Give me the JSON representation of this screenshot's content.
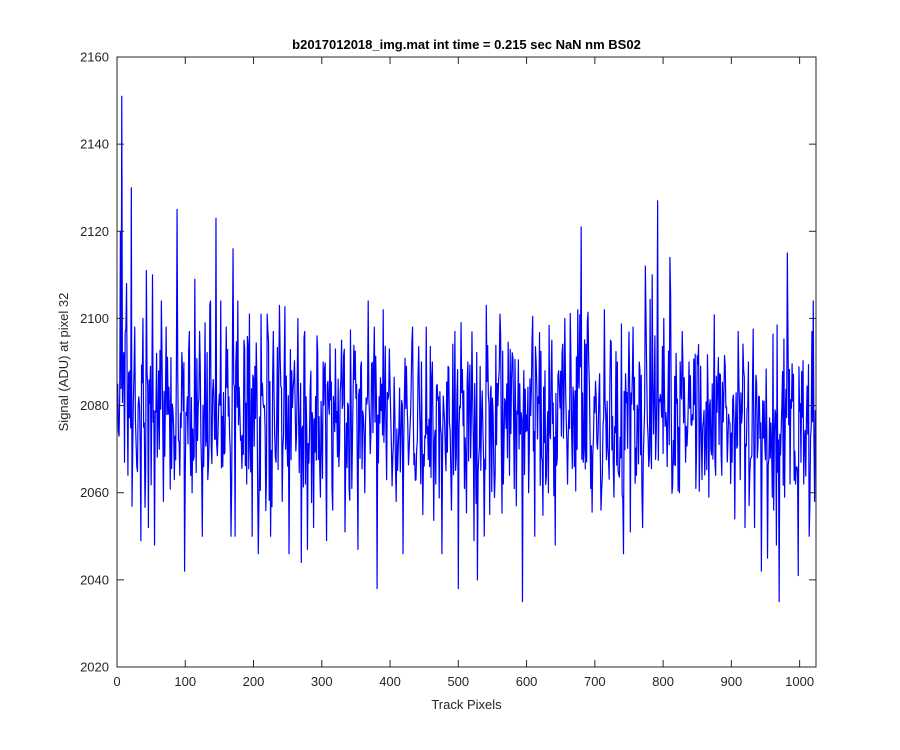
{
  "chart_data": {
    "type": "line",
    "title": "b2017012018_img.mat int time = 0.215 sec  NaN nm BS02",
    "xlabel": "Track Pixels",
    "ylabel": "Signal (ADU) at pixel 32",
    "xlim": [
      0,
      1024
    ],
    "ylim": [
      2020,
      2160
    ],
    "xticks": [
      0,
      100,
      200,
      300,
      400,
      500,
      600,
      700,
      800,
      900,
      1000
    ],
    "yticks": [
      2020,
      2040,
      2060,
      2080,
      2100,
      2120,
      2140,
      2160
    ],
    "grid": false,
    "line_color": "#0000ff",
    "n_points": 1024,
    "mean": 2078,
    "anchors": [
      [
        1,
        2085
      ],
      [
        3,
        2073
      ],
      [
        5,
        2120
      ],
      [
        7,
        2151
      ],
      [
        9,
        2090
      ],
      [
        11,
        2067
      ],
      [
        14,
        2108
      ],
      [
        16,
        2064
      ],
      [
        19,
        2088
      ],
      [
        21,
        2130
      ],
      [
        23,
        2070
      ],
      [
        26,
        2098
      ],
      [
        29,
        2066
      ],
      [
        32,
        2082
      ],
      [
        35,
        2049
      ],
      [
        38,
        2100
      ],
      [
        40,
        2076
      ],
      [
        43,
        2111
      ],
      [
        46,
        2052
      ],
      [
        49,
        2089
      ],
      [
        52,
        2110
      ],
      [
        55,
        2048
      ],
      [
        58,
        2092
      ],
      [
        62,
        2070
      ],
      [
        65,
        2104
      ],
      [
        68,
        2058
      ],
      [
        72,
        2098
      ],
      [
        75,
        2078
      ],
      [
        79,
        2091
      ],
      [
        84,
        2063
      ],
      [
        88,
        2125
      ],
      [
        92,
        2064
      ],
      [
        96,
        2088
      ],
      [
        99,
        2042
      ],
      [
        103,
        2082
      ],
      [
        106,
        2097
      ],
      [
        110,
        2060
      ],
      [
        114,
        2109
      ],
      [
        118,
        2072
      ],
      [
        121,
        2097
      ],
      [
        125,
        2050
      ],
      [
        129,
        2099
      ],
      [
        133,
        2063
      ],
      [
        137,
        2104
      ],
      [
        141,
        2086
      ],
      [
        145,
        2123
      ],
      [
        148,
        2074
      ],
      [
        152,
        2104
      ],
      [
        155,
        2066
      ],
      [
        160,
        2098
      ],
      [
        164,
        2082
      ],
      [
        167,
        2050
      ],
      [
        170,
        2116
      ],
      [
        173,
        2050
      ],
      [
        177,
        2104
      ],
      [
        181,
        2072
      ],
      [
        186,
        2095
      ],
      [
        190,
        2062
      ],
      [
        194,
        2101
      ],
      [
        198,
        2050
      ],
      [
        202,
        2089
      ],
      [
        207,
        2046
      ],
      [
        211,
        2101
      ],
      [
        216,
        2080
      ],
      [
        220,
        2101
      ],
      [
        225,
        2050
      ],
      [
        229,
        2097
      ],
      [
        233,
        2067
      ],
      [
        238,
        2103
      ],
      [
        242,
        2058
      ],
      [
        247,
        2070
      ],
      [
        252,
        2046
      ],
      [
        256,
        2088
      ],
      [
        261,
        2080
      ],
      [
        265,
        2100
      ],
      [
        270,
        2044
      ],
      [
        275,
        2097
      ],
      [
        279,
        2047
      ],
      [
        283,
        2084
      ],
      [
        288,
        2052
      ],
      [
        293,
        2096
      ],
      [
        298,
        2059
      ],
      [
        302,
        2090
      ],
      [
        307,
        2049
      ],
      [
        311,
        2078
      ],
      [
        316,
        2056
      ],
      [
        320,
        2093
      ],
      [
        325,
        2066
      ],
      [
        329,
        2095
      ],
      [
        334,
        2051
      ],
      [
        339,
        2080
      ],
      [
        344,
        2061
      ],
      [
        348,
        2086
      ],
      [
        353,
        2047
      ],
      [
        358,
        2090
      ],
      [
        363,
        2060
      ],
      [
        368,
        2104
      ],
      [
        372,
        2074
      ],
      [
        377,
        2098
      ],
      [
        381,
        2038
      ],
      [
        385,
        2076
      ],
      [
        390,
        2102
      ],
      [
        395,
        2063
      ],
      [
        399,
        2093
      ],
      [
        404,
        2068
      ],
      [
        409,
        2058
      ],
      [
        414,
        2084
      ],
      [
        419,
        2046
      ],
      [
        424,
        2089
      ],
      [
        428,
        2070
      ],
      [
        433,
        2098
      ],
      [
        438,
        2063
      ],
      [
        443,
        2082
      ],
      [
        448,
        2055
      ],
      [
        453,
        2098
      ],
      [
        458,
        2066
      ],
      [
        462,
        2090
      ],
      [
        467,
        2062
      ],
      [
        471,
        2082
      ],
      [
        476,
        2046
      ],
      [
        481,
        2069
      ],
      [
        485,
        2089
      ],
      [
        490,
        2056
      ],
      [
        495,
        2097
      ],
      [
        500,
        2038
      ],
      [
        505,
        2083
      ],
      [
        509,
        2061
      ],
      [
        514,
        2090
      ],
      [
        518,
        2068
      ],
      [
        523,
        2049
      ],
      [
        528,
        2040
      ],
      [
        532,
        2089
      ],
      [
        537,
        2068
      ],
      [
        541,
        2103
      ],
      [
        546,
        2055
      ],
      [
        551,
        2078
      ],
      [
        556,
        2071
      ],
      [
        561,
        2101
      ],
      [
        566,
        2062
      ],
      [
        571,
        2085
      ],
      [
        575,
        2064
      ],
      [
        580,
        2091
      ],
      [
        585,
        2057
      ],
      [
        590,
        2085
      ],
      [
        594,
        2035
      ],
      [
        599,
        2074
      ],
      [
        603,
        2060
      ],
      [
        608,
        2095
      ],
      [
        612,
        2050
      ],
      [
        617,
        2082
      ],
      [
        622,
        2068
      ],
      [
        627,
        2088
      ],
      [
        632,
        2060
      ],
      [
        637,
        2095
      ],
      [
        642,
        2048
      ],
      [
        647,
        2088
      ],
      [
        651,
        2073
      ],
      [
        656,
        2100
      ],
      [
        660,
        2062
      ],
      [
        665,
        2090
      ],
      [
        670,
        2066
      ],
      [
        675,
        2102
      ],
      [
        680,
        2121
      ],
      [
        684,
        2070
      ],
      [
        689,
        2099
      ],
      [
        694,
        2061
      ],
      [
        699,
        2082
      ],
      [
        704,
        2070
      ],
      [
        709,
        2056
      ],
      [
        714,
        2102
      ],
      [
        718,
        2081
      ],
      [
        723,
        2095
      ],
      [
        728,
        2059
      ],
      [
        733,
        2090
      ],
      [
        738,
        2068
      ],
      [
        742,
        2046
      ],
      [
        747,
        2083
      ],
      [
        752,
        2051
      ],
      [
        756,
        2098
      ],
      [
        761,
        2064
      ],
      [
        765,
        2090
      ],
      [
        770,
        2052
      ],
      [
        774,
        2112
      ],
      [
        779,
        2066
      ],
      [
        784,
        2110
      ],
      [
        788,
        2096
      ],
      [
        792,
        2127
      ],
      [
        797,
        2081
      ],
      [
        801,
        2100
      ],
      [
        806,
        2066
      ],
      [
        810,
        2114
      ],
      [
        815,
        2072
      ],
      [
        819,
        2092
      ],
      [
        824,
        2060
      ],
      [
        828,
        2097
      ],
      [
        833,
        2067
      ],
      [
        838,
        2090
      ],
      [
        843,
        2078
      ],
      [
        848,
        2061
      ],
      [
        852,
        2094
      ],
      [
        857,
        2063
      ],
      [
        862,
        2071
      ],
      [
        867,
        2059
      ],
      [
        872,
        2085
      ],
      [
        877,
        2064
      ],
      [
        881,
        2091
      ],
      [
        886,
        2064
      ],
      [
        891,
        2089
      ],
      [
        896,
        2078
      ],
      [
        901,
        2067
      ],
      [
        905,
        2054
      ],
      [
        910,
        2097
      ],
      [
        915,
        2076
      ],
      [
        920,
        2052
      ],
      [
        925,
        2090
      ],
      [
        929,
        2068
      ],
      [
        934,
        2052
      ],
      [
        939,
        2071
      ],
      [
        944,
        2042
      ],
      [
        948,
        2081
      ],
      [
        953,
        2045
      ],
      [
        958,
        2076
      ],
      [
        962,
        2056
      ],
      [
        966,
        2048
      ],
      [
        970,
        2035
      ],
      [
        974,
        2080
      ],
      [
        978,
        2059
      ],
      [
        982,
        2115
      ],
      [
        986,
        2062
      ],
      [
        990,
        2081
      ],
      [
        994,
        2062
      ],
      [
        998,
        2041
      ],
      [
        1002,
        2067
      ],
      [
        1006,
        2062
      ],
      [
        1010,
        2077
      ],
      [
        1014,
        2050
      ],
      [
        1018,
        2097
      ],
      [
        1020,
        2104
      ],
      [
        1022,
        2058
      ],
      [
        1024,
        2073
      ]
    ]
  }
}
